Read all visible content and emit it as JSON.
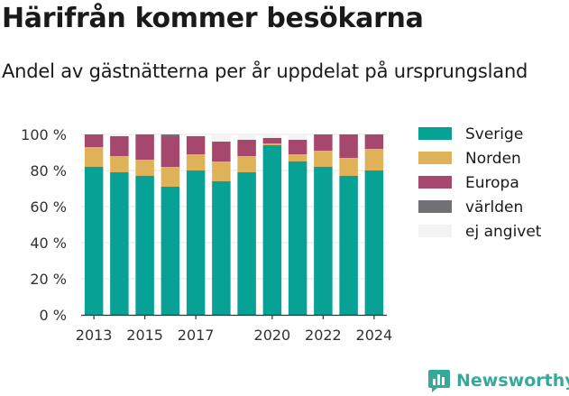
{
  "title": "Härifrån kommer besökarna",
  "subtitle": "Andel av gästnätterna per år uppdelat på ursprungsland",
  "brand": {
    "name": "Newsworthy",
    "icon": "newsworthy-logo-icon",
    "color": "#37a99b"
  },
  "chart_data": {
    "type": "bar",
    "stacked": true,
    "title": "",
    "xlabel": "",
    "ylabel": "",
    "ylim": [
      0,
      100
    ],
    "y_ticks": [
      "0 %",
      "20 %",
      "40 %",
      "60 %",
      "80 %",
      "100 %"
    ],
    "x_tick_labels": [
      "2013",
      "2015",
      "2017",
      "2020",
      "2022",
      "2024"
    ],
    "grid": true,
    "legend_position": "right",
    "categories": [
      "2013",
      "2014",
      "2015",
      "2016",
      "2017",
      "2018",
      "2019",
      "2020",
      "2021",
      "2022",
      "2023",
      "2024"
    ],
    "x_positions": [
      2013,
      2014,
      2015,
      2016,
      2017,
      2018,
      2019,
      2020,
      2021,
      2022,
      2023,
      2024
    ],
    "series": [
      {
        "name": "Sverige",
        "color": "#08a195",
        "values": [
          82,
          79,
          77,
          71,
          80,
          74,
          79,
          94,
          85,
          82,
          77,
          80
        ]
      },
      {
        "name": "Norden",
        "color": "#dfb158",
        "values": [
          11,
          9,
          9,
          11,
          9,
          11,
          9,
          1,
          4,
          9,
          10,
          12
        ]
      },
      {
        "name": "Europa",
        "color": "#a6476e",
        "values": [
          7,
          11,
          14,
          17,
          10,
          11,
          9,
          3,
          8,
          9,
          13,
          8
        ]
      },
      {
        "name": "världen",
        "color": "#707075",
        "values": [
          0,
          0,
          0,
          1,
          0,
          0,
          0,
          0,
          0,
          0,
          0,
          0
        ]
      },
      {
        "name": "ej angivet",
        "color": "#f3f3f3",
        "values": [
          0,
          1,
          0,
          0,
          1,
          4,
          3,
          2,
          3,
          0,
          0,
          0
        ]
      }
    ]
  }
}
